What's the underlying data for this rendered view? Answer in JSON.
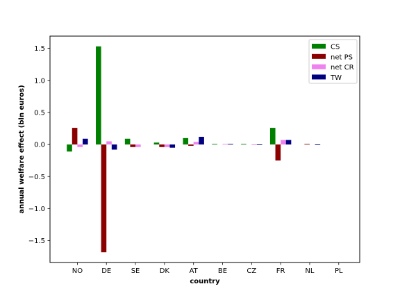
{
  "chart_data": {
    "type": "bar",
    "categories": [
      "NO",
      "DE",
      "SE",
      "DK",
      "AT",
      "BE",
      "CZ",
      "FR",
      "NL",
      "PL"
    ],
    "series": [
      {
        "name": "CS",
        "color": "#008000",
        "values": [
          -0.11,
          1.53,
          0.09,
          0.03,
          0.1,
          0.01,
          0.01,
          0.26,
          0.0,
          0.0
        ]
      },
      {
        "name": "net PS",
        "color": "#8b0000",
        "values": [
          0.26,
          -1.68,
          -0.04,
          -0.04,
          -0.02,
          0.0,
          0.0,
          -0.25,
          0.01,
          0.0
        ]
      },
      {
        "name": "net CR",
        "color": "#ee82ee",
        "values": [
          -0.04,
          0.05,
          -0.04,
          -0.04,
          0.04,
          0.01,
          -0.01,
          0.07,
          0.0,
          0.0
        ]
      },
      {
        "name": "TW",
        "color": "#000080",
        "values": [
          0.09,
          -0.08,
          0.0,
          -0.05,
          0.12,
          0.01,
          -0.01,
          0.07,
          -0.01,
          0.0
        ]
      }
    ],
    "title": "",
    "xlabel": "country",
    "ylabel": "annual welfare effect (bln euros)",
    "ylim": [
      -1.84,
      1.69
    ],
    "yticks": [
      -1.5,
      -1.0,
      -0.5,
      0.0,
      0.5,
      1.0,
      1.5
    ],
    "ytick_labels": [
      "−1.5",
      "−1.0",
      "−0.5",
      "0.0",
      "0.5",
      "1.0",
      "1.5"
    ],
    "grid": false,
    "legend_position": "top-right"
  }
}
